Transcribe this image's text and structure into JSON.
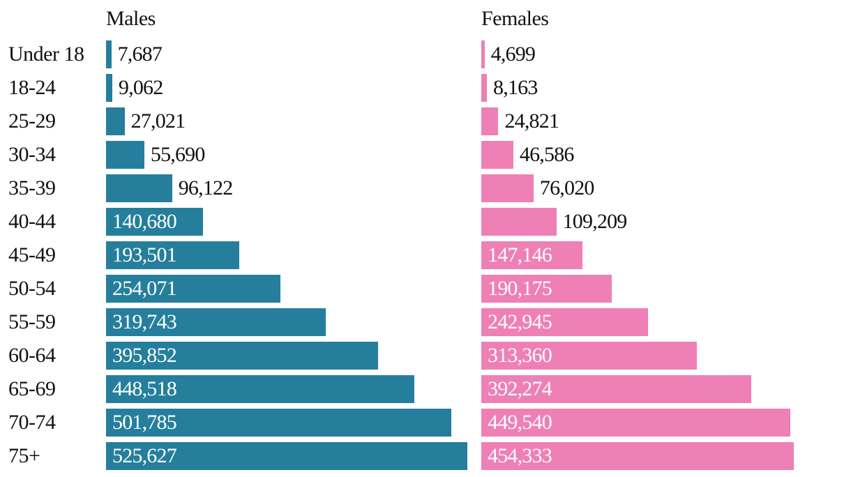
{
  "chart_data": {
    "type": "bar",
    "orientation": "horizontal",
    "categories": [
      "Under 18",
      "18-24",
      "25-29",
      "30-34",
      "35-39",
      "40-44",
      "45-49",
      "50-54",
      "55-59",
      "60-64",
      "65-69",
      "70-74",
      "75+"
    ],
    "series": [
      {
        "name": "Males",
        "color": "#257f9c",
        "values": [
          7687,
          9062,
          27021,
          55690,
          96122,
          140680,
          193501,
          254071,
          319743,
          395852,
          448518,
          501785,
          525627
        ],
        "labels": [
          "7,687",
          "9,062",
          "27,021",
          "55,690",
          "96,122",
          "140,680",
          "193,501",
          "254,071",
          "319,743",
          "395,852",
          "448,518",
          "501,785",
          "525,627"
        ]
      },
      {
        "name": "Females",
        "color": "#ee80b5",
        "values": [
          4699,
          8163,
          24821,
          46586,
          76020,
          109209,
          147146,
          190175,
          242945,
          313360,
          392274,
          449540,
          454333
        ],
        "labels": [
          "4,699",
          "8,163",
          "24,821",
          "46,586",
          "76,020",
          "109,209",
          "147,146",
          "190,175",
          "242,945",
          "313,360",
          "392,274",
          "449,540",
          "454,333"
        ]
      }
    ],
    "title": "",
    "xlabel": "",
    "ylabel": "",
    "xlim": [
      0,
      525627
    ],
    "grid": false,
    "legend": "column titles above bars"
  }
}
